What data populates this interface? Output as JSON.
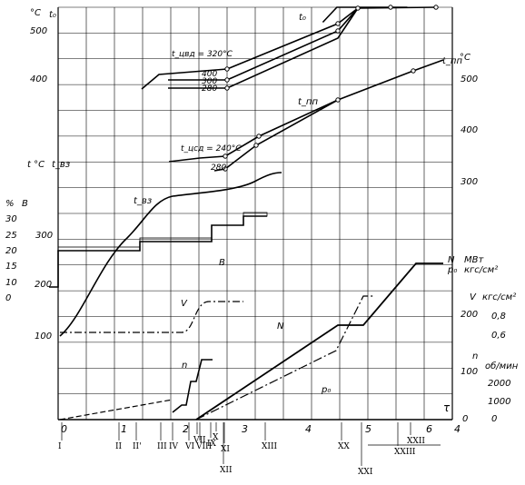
{
  "chart_data": {
    "type": "line",
    "title": "",
    "x_axis": {
      "label": "τ",
      "ticks": [
        "0",
        "1",
        "2",
        "3",
        "4",
        "5",
        "6",
        "4"
      ]
    },
    "stages": [
      "I",
      "II",
      "II'",
      "III",
      "IV",
      "VI",
      "VII",
      "VIII",
      "IX",
      "X",
      "XI",
      "XII",
      "XIII",
      "XX",
      "XXI",
      "XXII",
      "XXIII"
    ],
    "left_axes": [
      {
        "label": "°C",
        "ticks": [
          "500",
          "400"
        ]
      },
      {
        "label": "t °C",
        "ticks": [
          "300",
          "200",
          "100"
        ]
      },
      {
        "label": "%",
        "ticks": [
          "30",
          "25",
          "20",
          "15",
          "10",
          "0"
        ]
      }
    ],
    "right_axes": [
      {
        "label": "°C",
        "ticks": [
          "500",
          "400",
          "300"
        ]
      },
      {
        "label": "МВт кгс/см²",
        "ticks": [
          "200",
          "100",
          "0"
        ]
      },
      {
        "label": "кгс/см²",
        "ticks": [
          "0,8",
          "0,6"
        ]
      },
      {
        "label": "об/мин",
        "ticks": [
          "2000",
          "1000",
          "0"
        ]
      }
    ],
    "annotations": [
      "t_цвд = 320°C",
      "400",
      "300",
      "280",
      "t_цсд = 240°C",
      "280"
    ],
    "series": [
      {
        "name": "t_0",
        "x": [
          4.7,
          4.95,
          5.6,
          6.2
        ],
        "y": [
          480,
          510,
          510,
          510
        ]
      },
      {
        "name": "t_пп",
        "x": [
          2.3,
          3.0,
          4.0,
          4.7,
          5.5,
          6.2
        ],
        "y": [
          230,
          280,
          340,
          380,
          440,
          470
        ]
      },
      {
        "name": "t_вз",
        "x": [
          0,
          1.0,
          1.5,
          2.0,
          2.5,
          3.0
        ],
        "y": [
          100,
          220,
          300,
          305,
          315,
          330
        ]
      },
      {
        "name": "B",
        "x": [
          0,
          1.3,
          2.4,
          3.2
        ],
        "y": [
          20,
          20,
          22,
          26
        ]
      },
      {
        "name": "V",
        "x": [
          0,
          2.0,
          2.4,
          2.9
        ],
        "y": [
          0.6,
          0.6,
          0.75,
          0.85
        ]
      },
      {
        "name": "n",
        "x": [
          1.8,
          2.05,
          2.2,
          2.3
        ],
        "y": [
          0,
          600,
          1000,
          1500
        ]
      },
      {
        "name": "N",
        "x": [
          2.3,
          4.6,
          5.0,
          5.8,
          6.1
        ],
        "y": [
          0,
          130,
          130,
          240,
          240
        ]
      },
      {
        "name": "p_0",
        "x": [
          2.3,
          4.5,
          4.9,
          5.0
        ],
        "y": [
          0,
          100,
          220,
          240
        ]
      }
    ]
  },
  "labels": {
    "x_tau": "τ",
    "x_ticks": [
      "0",
      "1",
      "2",
      "3",
      "4",
      "5",
      "6",
      "4"
    ],
    "top_left_unit": "°C",
    "t0_left": "t₀",
    "top_left_500": "500",
    "top_left_400": "400",
    "mid_left_unit": "t °C",
    "t_vz": "t_вз",
    "mid_left_300": "300",
    "mid_left_200": "200",
    "mid_left_100": "100",
    "pct_unit": "%",
    "pct_B": "B",
    "pct_ticks": [
      "30",
      "25",
      "20",
      "15",
      "10",
      "0"
    ],
    "right_top_unit": "°C",
    "right_tpp": "t_пп",
    "right_500": "500",
    "right_400": "400",
    "right_300": "300",
    "right_N": "N",
    "right_p0": "p₀",
    "right_mw": "МВт",
    "right_kgs": "кгс/см²",
    "right_200": "200",
    "right_100": "100",
    "right_0": "0",
    "right_V": "V",
    "right_kgs2": "кгс/см²",
    "right_08": "0,8",
    "right_06": "0,6",
    "right_n": "n",
    "right_rpm": "об/мин",
    "right_2000": "2000",
    "right_1000": "1000",
    "right_0b": "0",
    "curve_t0": "t₀",
    "curve_tpp": "t_пп",
    "curve_tvz": "t_вз",
    "curve_B": "B",
    "curve_V": "V",
    "curve_n": "n",
    "curve_N": "N",
    "curve_p0": "p₀",
    "ann_tcvd": "t_цвд = 320°C",
    "ann_400": "400",
    "ann_300": "300",
    "ann_280a": "280",
    "ann_tcsd": "t_цсд = 240°C",
    "ann_280b": "280",
    "stages": {
      "I": "I",
      "II": "II",
      "IIp": "II'",
      "III": "III",
      "IV": "IV",
      "VI": "VI",
      "VII": "VII",
      "VIII": "VIII",
      "IX": "IX",
      "X": "X",
      "XI": "XI",
      "XII": "XII",
      "XIII": "XIII",
      "XX": "XX",
      "XXI": "XXI",
      "XXII": "XXII",
      "XXIII": "XXIII"
    }
  },
  "colors": {
    "ink": "#000000",
    "grid": "#000000",
    "paper": "#ffffff"
  }
}
